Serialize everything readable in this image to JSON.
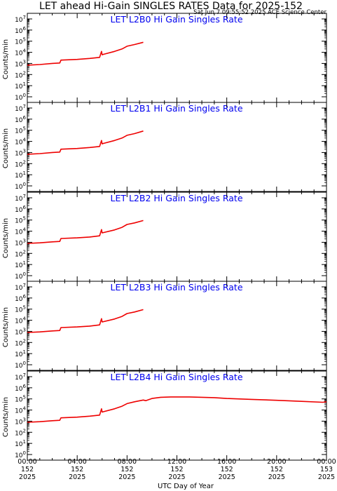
{
  "title": "LET ahead Hi-Gain SINGLES RATES Data for 2025-152",
  "timestamp": "Sat Jun  7 09:55:52 2025 ACE Science Center",
  "chart_data": {
    "type": "line",
    "title": "LET ahead Hi-Gain SINGLES RATES Data for 2025-152",
    "xlabel": "UTC Day of Year",
    "ylabel": "Counts/min",
    "y_scale": "log",
    "ylim": [
      1,
      10000000
    ],
    "xlim": [
      "152 2025 00:00",
      "153 2025 00:00"
    ],
    "y_ticks": [
      {
        "base": "10",
        "exp": "0",
        "value": 1
      },
      {
        "base": "10",
        "exp": "1",
        "value": 10
      },
      {
        "base": "10",
        "exp": "2",
        "value": 100
      },
      {
        "base": "10",
        "exp": "3",
        "value": 1000
      },
      {
        "base": "10",
        "exp": "4",
        "value": 10000
      },
      {
        "base": "10",
        "exp": "5",
        "value": 100000
      },
      {
        "base": "10",
        "exp": "6",
        "value": 1000000
      },
      {
        "base": "10",
        "exp": "7",
        "value": 10000000
      }
    ],
    "x_ticks": [
      {
        "time": "00:00",
        "doy": "152",
        "year": "2025",
        "hour": 0
      },
      {
        "time": "04:00",
        "doy": "152",
        "year": "2025",
        "hour": 4
      },
      {
        "time": "08:00",
        "doy": "152",
        "year": "2025",
        "hour": 8
      },
      {
        "time": "12:00",
        "doy": "152",
        "year": "2025",
        "hour": 12
      },
      {
        "time": "16:00",
        "doy": "152",
        "year": "2025",
        "hour": 16
      },
      {
        "time": "20:00",
        "doy": "152",
        "year": "2025",
        "hour": 20
      },
      {
        "time": "00:00",
        "doy": "153",
        "year": "2025",
        "hour": 24
      }
    ],
    "series_color": "#ee0000",
    "panels": [
      {
        "title": "LET L2B0 Hi Gain Singles Rate",
        "x_hours": [
          0,
          1,
          2,
          2.6,
          2.7,
          4,
          5,
          5.8,
          5.95,
          6.0,
          6.1,
          7,
          7.6,
          8,
          8.6,
          9.3
        ],
        "values": [
          700,
          800,
          1000,
          1100,
          2000,
          2300,
          2800,
          3500,
          12000,
          6000,
          6500,
          12000,
          20000,
          35000,
          50000,
          80000
        ]
      },
      {
        "title": "LET L2B1 Hi Gain Singles Rate",
        "x_hours": [
          0,
          1,
          2,
          2.6,
          2.7,
          4,
          5,
          5.8,
          5.95,
          6.0,
          6.1,
          7,
          7.6,
          8,
          8.6,
          9.3
        ],
        "values": [
          700,
          800,
          1000,
          1100,
          2000,
          2300,
          2800,
          3500,
          12000,
          6000,
          6500,
          12000,
          20000,
          35000,
          50000,
          85000
        ]
      },
      {
        "title": "LET L2B2 Hi Gain Singles Rate",
        "x_hours": [
          0,
          1,
          2,
          2.6,
          2.7,
          4,
          5,
          5.8,
          5.95,
          6.0,
          6.1,
          7,
          7.6,
          8,
          8.6,
          9.3
        ],
        "values": [
          800,
          900,
          1100,
          1200,
          2200,
          2500,
          3000,
          3800,
          14000,
          7000,
          7500,
          13000,
          22000,
          40000,
          55000,
          90000
        ]
      },
      {
        "title": "LET L2B3 Hi Gain Singles Rate",
        "x_hours": [
          0,
          1,
          2,
          2.6,
          2.7,
          4,
          5,
          5.8,
          5.95,
          6.0,
          6.1,
          7,
          7.6,
          8,
          8.6,
          9.3
        ],
        "values": [
          800,
          900,
          1100,
          1200,
          2200,
          2500,
          3000,
          3800,
          14000,
          7000,
          7500,
          13000,
          22000,
          40000,
          55000,
          90000
        ]
      },
      {
        "title": "LET L2B4 Hi Gain Singles Rate",
        "x_hours": [
          0,
          1,
          2,
          2.6,
          2.7,
          4,
          5,
          5.8,
          5.95,
          6.0,
          6.1,
          7,
          7.6,
          8,
          8.6,
          9.3,
          9.5,
          10,
          10.7,
          11.5,
          13,
          14,
          15,
          16,
          18,
          20,
          22,
          23.7,
          24
        ],
        "values": [
          800,
          900,
          1100,
          1200,
          2000,
          2300,
          2800,
          3500,
          13000,
          6500,
          7000,
          13000,
          22000,
          38000,
          55000,
          80000,
          70000,
          110000,
          140000,
          150000,
          150000,
          140000,
          130000,
          110000,
          90000,
          75000,
          60000,
          50000,
          55000
        ]
      }
    ]
  }
}
